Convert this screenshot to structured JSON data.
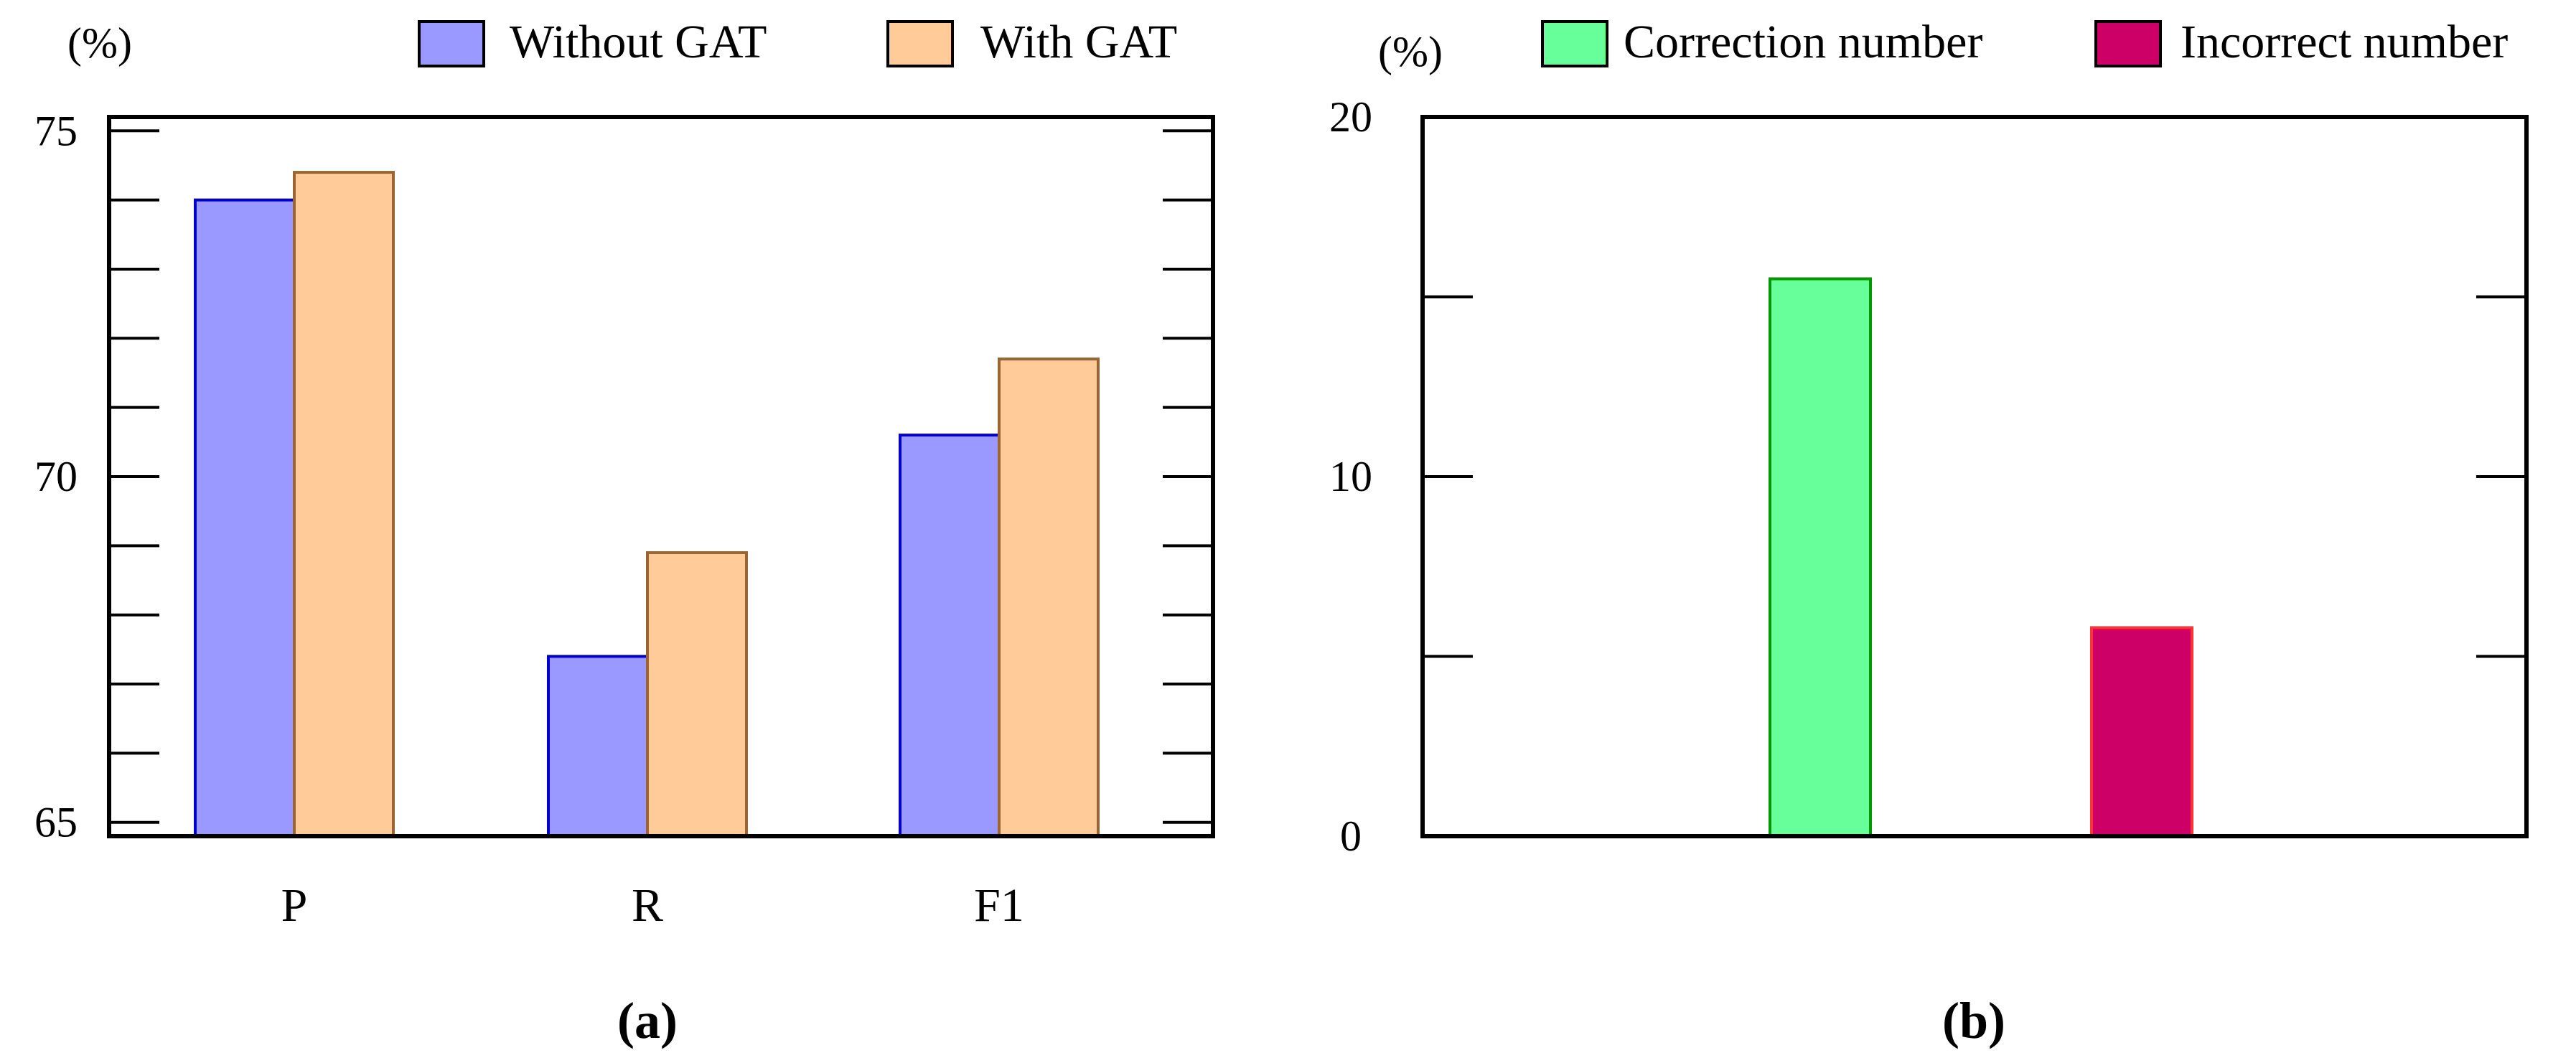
{
  "chart_data": [
    {
      "type": "bar",
      "unit_label": "(%)",
      "categories": [
        "P",
        "R",
        "F1"
      ],
      "series": [
        {
          "name": "Without GAT",
          "values": [
            74.0,
            67.4,
            70.6
          ],
          "color": "#9999ff",
          "stroke": "#0000cc"
        },
        {
          "name": "With GAT",
          "values": [
            74.4,
            68.9,
            71.7
          ],
          "color": "#ffcc99",
          "stroke": "#996633"
        }
      ],
      "ylim": [
        64.8,
        75.2
      ],
      "yticks": [
        65,
        70,
        75
      ],
      "minor_step": 1,
      "caption": "(a)",
      "legend_position": "top-right",
      "grid": false
    },
    {
      "type": "bar",
      "unit_label": "(%)",
      "categories": [
        ""
      ],
      "series": [
        {
          "name": "Correction number",
          "values": [
            15.5
          ],
          "color": "#66ff99",
          "stroke": "#009900"
        },
        {
          "name": "Incorrect number",
          "values": [
            5.8
          ],
          "color": "#cc0066",
          "stroke": "#ff3333"
        }
      ],
      "ylim": [
        0,
        20
      ],
      "yticks": [
        0,
        10,
        20
      ],
      "minor_step": 5,
      "caption": "(b)",
      "legend_position": "top-right",
      "grid": false
    }
  ]
}
